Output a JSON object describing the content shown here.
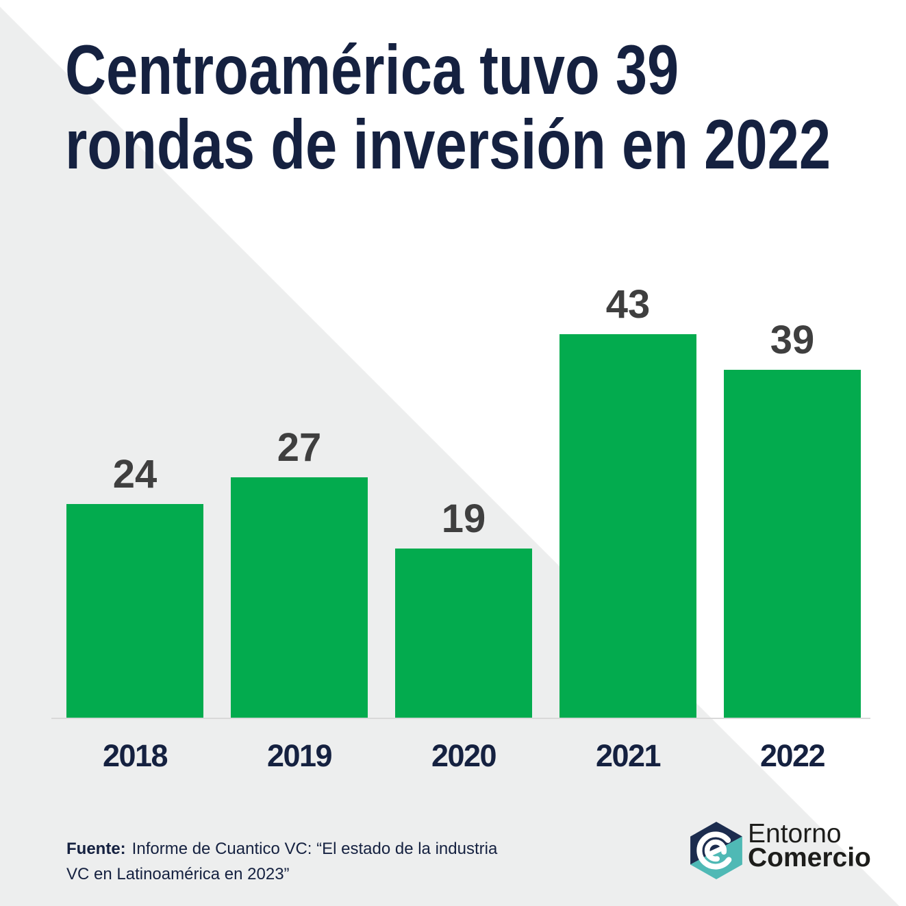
{
  "title": {
    "line1": "Centroamérica tuvo 39",
    "line2": "rondas de inversión en 2022",
    "color": "#152140"
  },
  "chart_data": {
    "type": "bar",
    "categories": [
      "2018",
      "2019",
      "2020",
      "2021",
      "2022"
    ],
    "values": [
      24,
      27,
      19,
      43,
      39
    ],
    "title": "Centroamérica tuvo 39 rondas de inversión en 2022",
    "xlabel": "",
    "ylabel": "",
    "ylim": [
      0,
      46
    ],
    "grid": false,
    "legend": "none",
    "bar_color": "#03AB4E",
    "value_label_color": "#3F3F3F",
    "category_label_color": "#152140",
    "axis_line_color": "#D9D9D9"
  },
  "background": {
    "upper_left_gray": "#EDEEEE",
    "lower_right_white": "#FFFFFF"
  },
  "footer": {
    "source_label": "Fuente:",
    "source_line1": "Informe de Cuantico VC: “El estado de la industria",
    "source_line2": "VC en Latinoamérica en 2023”"
  },
  "logo": {
    "name_line1": "Entorno",
    "name_line2": "Comercio",
    "hexagon_navy": "#1C2C4E",
    "hexagon_teal": "#4FB9B5",
    "text_color": "#1D1D1B"
  }
}
